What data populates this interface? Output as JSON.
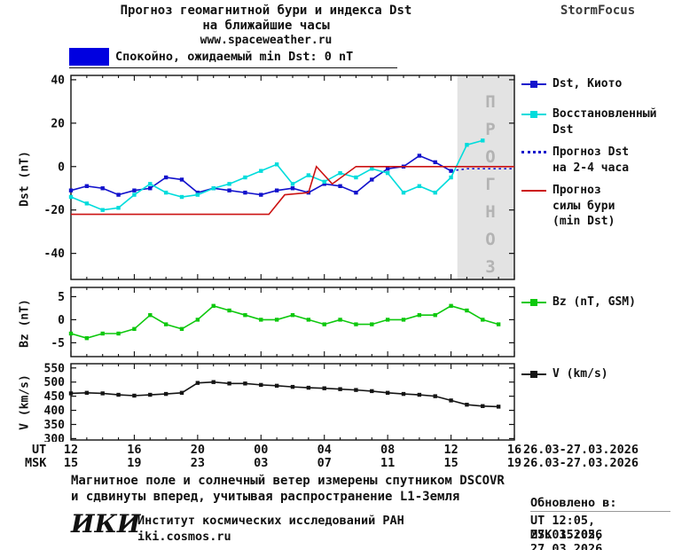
{
  "header": {
    "title_line1": "Прогноз геомагнитной бури и индекса Dst",
    "title_line2": "на ближайшие часы",
    "url": "www.spaceweather.ru",
    "brand": "StormFocus"
  },
  "banner": {
    "label": "Спокойно, ожидаемый min Dst: 0 nT",
    "color": "#0000e0"
  },
  "forecast_overlay": {
    "label": "ПРОГНОЗ"
  },
  "panels": {
    "dst_axis_label": "Dst (nT)",
    "bz_axis_label": "Bz (nT)",
    "v_axis_label": "V (km/s)"
  },
  "legend": {
    "dst_kyoto": "Dst, Киото",
    "restored": "Восстановленный\nDst",
    "forecast_dst": "Прогноз Dst\nна 2-4 часа",
    "forecast_storm": "Прогноз\nсилы бури\n(min Dst)",
    "bz": "Bz (nT, GSM)",
    "v": "V (km/s)"
  },
  "axis": {
    "ut_label": "UT",
    "msk_label": "MSK",
    "tick_hours": [
      0,
      4,
      8,
      12,
      16,
      20,
      24,
      28
    ],
    "ut_ticks": [
      "12",
      "16",
      "20",
      "00",
      "04",
      "08",
      "12",
      "16"
    ],
    "msk_ticks": [
      "15",
      "19",
      "23",
      "03",
      "07",
      "11",
      "15",
      "19"
    ],
    "date_range": "26.03-27.03.2026"
  },
  "footer": {
    "note_line1": "Магнитное поле и солнечный ветер измерены спутником DSCOVR",
    "note_line2": "и сдвинуты вперед, учитывая распространение L1-Земля",
    "updated_heading": "Обновлено в:",
    "updated_ut": "UT  12:05, 27.03.2026",
    "updated_msk": "MSK 15:05, 27.03.2026",
    "logo": "ИКИ",
    "institute": "Институт космических исследований РАН",
    "site": "iki.cosmos.ru"
  },
  "chart_data": [
    {
      "id": "dst",
      "type": "line",
      "ylabel": "Dst (nT)",
      "xlim": [
        0,
        28
      ],
      "ylim": [
        -52,
        42
      ],
      "yticks": [
        40,
        20,
        0,
        -20,
        -40
      ],
      "x_unit": "hours from 12:00 UT 26.03.2026",
      "forecast_region": {
        "start": 24.4,
        "end": 28,
        "fill": "#e3e3e3"
      },
      "series": [
        {
          "name": "Dst, Киото",
          "color": "#1212cc",
          "marker": true,
          "x": [
            0,
            1,
            2,
            3,
            4,
            5,
            6,
            7,
            8,
            9,
            10,
            11,
            12,
            13,
            14,
            15,
            16,
            17,
            18,
            19,
            20,
            21,
            22,
            23,
            24
          ],
          "y": [
            -11,
            -9,
            -10,
            -13,
            -11,
            -10,
            -5,
            -6,
            -12,
            -10,
            -11,
            -12,
            -13,
            -11,
            -10,
            -12,
            -8,
            -9,
            -12,
            -6,
            -1,
            0,
            5,
            2,
            -2
          ]
        },
        {
          "name": "Восстановленный Dst",
          "color": "#00dcdc",
          "marker": true,
          "x": [
            0,
            1,
            2,
            3,
            4,
            5,
            6,
            7,
            8,
            9,
            10,
            11,
            12,
            13,
            14,
            15,
            16,
            17,
            18,
            19,
            20,
            21,
            22,
            23,
            24,
            25,
            26
          ],
          "y": [
            -14,
            -17,
            -20,
            -19,
            -13,
            -8,
            -12,
            -14,
            -13,
            -10,
            -8,
            -5,
            -2,
            1,
            -8,
            -4,
            -7,
            -3,
            -5,
            -1,
            -3,
            -12,
            -9,
            -12,
            -5,
            10,
            12
          ]
        },
        {
          "name": "Прогноз Dst на 2-4 часа",
          "color": "#1212cc",
          "dashed": true,
          "x": [
            24,
            25,
            26,
            27,
            28
          ],
          "y": [
            -2,
            -1,
            -1,
            -1,
            -1
          ]
        },
        {
          "name": "Прогноз силы бури (min Dst)",
          "color": "#cc1212",
          "x": [
            0,
            12.5,
            13.5,
            15,
            15.5,
            16.5,
            18,
            28
          ],
          "y": [
            -22,
            -22,
            -13,
            -12,
            0,
            -8,
            0,
            0
          ]
        }
      ]
    },
    {
      "id": "bz",
      "type": "line",
      "ylabel": "Bz (nT)",
      "xlim": [
        0,
        28
      ],
      "ylim": [
        -8,
        7
      ],
      "yticks": [
        5,
        0,
        -5
      ],
      "series": [
        {
          "name": "Bz (nT, GSM)",
          "color": "#0ec80e",
          "marker": true,
          "x": [
            0,
            1,
            2,
            3,
            4,
            5,
            6,
            7,
            8,
            9,
            10,
            11,
            12,
            13,
            14,
            15,
            16,
            17,
            18,
            19,
            20,
            21,
            22,
            23,
            24,
            25,
            26,
            27
          ],
          "y": [
            -3,
            -4,
            -3,
            -3,
            -2,
            1,
            -1,
            -2,
            0,
            3,
            2,
            1,
            0,
            0,
            1,
            0,
            -1,
            0,
            -1,
            -1,
            0,
            0,
            1,
            1,
            3,
            2,
            0,
            -1
          ]
        }
      ]
    },
    {
      "id": "v",
      "type": "line",
      "ylabel": "V (km/s)",
      "xlim": [
        0,
        28
      ],
      "ylim": [
        295,
        565
      ],
      "yticks": [
        550,
        500,
        450,
        400,
        350,
        300
      ],
      "series": [
        {
          "name": "V (km/s)",
          "color": "#151515",
          "marker": true,
          "x": [
            0,
            1,
            2,
            3,
            4,
            5,
            6,
            7,
            8,
            9,
            10,
            11,
            12,
            13,
            14,
            15,
            16,
            17,
            18,
            19,
            20,
            21,
            22,
            23,
            24,
            25,
            26,
            27
          ],
          "y": [
            460,
            462,
            460,
            455,
            452,
            455,
            458,
            462,
            497,
            500,
            495,
            495,
            490,
            487,
            483,
            480,
            478,
            475,
            472,
            468,
            462,
            458,
            455,
            450,
            435,
            420,
            415,
            413
          ]
        }
      ]
    }
  ]
}
